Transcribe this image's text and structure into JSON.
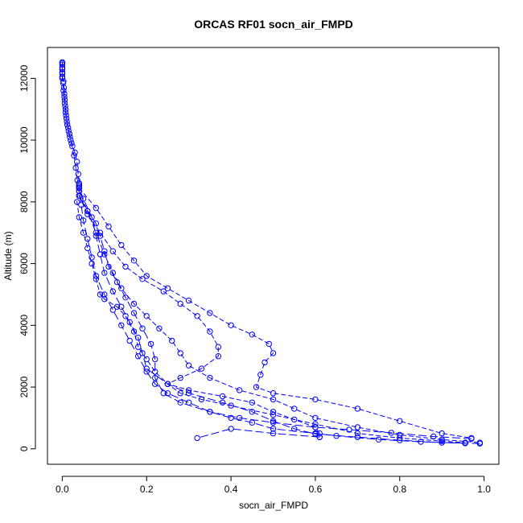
{
  "chart_data": {
    "type": "scatter",
    "title": "ORCAS RF01 socn_air_FMPD",
    "xlabel": "socn_air_FMPD",
    "ylabel": "Altitude (m)",
    "xlim": [
      -0.035,
      1.035
    ],
    "ylim": [
      -500,
      13000
    ],
    "xticks": [
      {
        "value": 0.0,
        "label": "0.0"
      },
      {
        "value": 0.2,
        "label": "0.2"
      },
      {
        "value": 0.4,
        "label": "0.4"
      },
      {
        "value": 0.6,
        "label": "0.6"
      },
      {
        "value": 0.8,
        "label": "0.8"
      },
      {
        "value": 1.0,
        "label": "1.0"
      }
    ],
    "yticks": [
      {
        "value": 0,
        "label": "0"
      },
      {
        "value": 2000,
        "label": "2000"
      },
      {
        "value": 4000,
        "label": "4000"
      },
      {
        "value": 6000,
        "label": "6000"
      },
      {
        "value": 8000,
        "label": "8000"
      },
      {
        "value": 10000,
        "label": "10000"
      },
      {
        "value": 12000,
        "label": "12000"
      }
    ],
    "color": "#0000ff",
    "marker": "open-circle",
    "series": [
      {
        "points": [
          [
            0.0,
            12500
          ],
          [
            0.0,
            12350
          ],
          [
            0.0,
            12200
          ],
          [
            0.0,
            12050
          ],
          [
            0.003,
            11900
          ],
          [
            0.004,
            11700
          ],
          [
            0.005,
            11500
          ],
          [
            0.006,
            11300
          ],
          [
            0.007,
            11100
          ],
          [
            0.008,
            10900
          ],
          [
            0.01,
            10700
          ],
          [
            0.012,
            10500
          ],
          [
            0.015,
            10300
          ],
          [
            0.018,
            10100
          ],
          [
            0.022,
            9900
          ],
          [
            0.028,
            9500
          ],
          [
            0.032,
            9100
          ],
          [
            0.036,
            8700
          ],
          [
            0.04,
            8550
          ],
          [
            0.04,
            8500
          ]
        ]
      },
      {
        "points": [
          [
            0.04,
            8500
          ],
          [
            0.035,
            8000
          ],
          [
            0.04,
            7500
          ],
          [
            0.05,
            7000
          ],
          [
            0.06,
            6500
          ],
          [
            0.07,
            6000
          ],
          [
            0.08,
            5500
          ],
          [
            0.09,
            5000
          ],
          [
            0.1,
            4850
          ],
          [
            0.13,
            4600
          ],
          [
            0.15,
            4300
          ],
          [
            0.17,
            3800
          ],
          [
            0.18,
            3300
          ],
          [
            0.2,
            2900
          ],
          [
            0.22,
            2500
          ],
          [
            0.25,
            2100
          ],
          [
            0.28,
            1800
          ],
          [
            0.33,
            1600
          ],
          [
            0.4,
            1400
          ],
          [
            0.5,
            1100
          ],
          [
            0.6,
            800
          ],
          [
            0.7,
            500
          ],
          [
            0.8,
            350
          ],
          [
            0.9,
            250
          ],
          [
            0.955,
            200
          ]
        ]
      },
      {
        "points": [
          [
            0.955,
            180
          ],
          [
            0.85,
            230
          ],
          [
            0.75,
            300
          ],
          [
            0.65,
            420
          ],
          [
            0.6,
            500
          ],
          [
            0.5,
            650
          ],
          [
            0.45,
            850
          ],
          [
            0.4,
            1000
          ],
          [
            0.35,
            1200
          ],
          [
            0.3,
            1500
          ],
          [
            0.25,
            1800
          ],
          [
            0.22,
            2100
          ],
          [
            0.2,
            2500
          ],
          [
            0.18,
            3000
          ],
          [
            0.16,
            3500
          ],
          [
            0.14,
            4000
          ],
          [
            0.12,
            4500
          ],
          [
            0.1,
            5000
          ],
          [
            0.08,
            5600
          ],
          [
            0.07,
            6200
          ],
          [
            0.06,
            6800
          ],
          [
            0.05,
            7400
          ],
          [
            0.045,
            7900
          ],
          [
            0.04,
            8350
          ]
        ]
      },
      {
        "points": [
          [
            0.04,
            8350
          ],
          [
            0.06,
            7700
          ],
          [
            0.08,
            7000
          ],
          [
            0.1,
            6300
          ],
          [
            0.12,
            5700
          ],
          [
            0.14,
            5200
          ],
          [
            0.17,
            4700
          ],
          [
            0.2,
            4300
          ],
          [
            0.23,
            3900
          ],
          [
            0.26,
            3500
          ],
          [
            0.28,
            3100
          ],
          [
            0.3,
            2700
          ],
          [
            0.35,
            2300
          ],
          [
            0.42,
            1900
          ],
          [
            0.5,
            1600
          ],
          [
            0.55,
            1300
          ],
          [
            0.6,
            1000
          ],
          [
            0.7,
            700
          ],
          [
            0.8,
            450
          ],
          [
            0.9,
            300
          ],
          [
            0.99,
            200
          ]
        ]
      },
      {
        "points": [
          [
            0.99,
            170
          ],
          [
            0.9,
            200
          ],
          [
            0.8,
            280
          ],
          [
            0.7,
            380
          ],
          [
            0.6,
            480
          ],
          [
            0.55,
            650
          ],
          [
            0.5,
            900
          ],
          [
            0.45,
            1200
          ],
          [
            0.38,
            1500
          ],
          [
            0.3,
            1800
          ],
          [
            0.25,
            2100
          ],
          [
            0.2,
            2600
          ],
          [
            0.19,
            3100
          ],
          [
            0.18,
            3600
          ],
          [
            0.16,
            4100
          ],
          [
            0.14,
            4600
          ],
          [
            0.12,
            5100
          ],
          [
            0.1,
            5700
          ],
          [
            0.09,
            6300
          ],
          [
            0.08,
            6900
          ],
          [
            0.07,
            7500
          ],
          [
            0.05,
            8100
          ],
          [
            0.04,
            8450
          ]
        ]
      },
      {
        "points": [
          [
            0.04,
            8450
          ],
          [
            0.08,
            7800
          ],
          [
            0.11,
            7200
          ],
          [
            0.14,
            6600
          ],
          [
            0.17,
            6100
          ],
          [
            0.2,
            5600
          ],
          [
            0.25,
            5200
          ],
          [
            0.3,
            4800
          ],
          [
            0.35,
            4400
          ],
          [
            0.4,
            4000
          ],
          [
            0.45,
            3700
          ],
          [
            0.49,
            3400
          ],
          [
            0.5,
            3100
          ],
          [
            0.48,
            2800
          ],
          [
            0.47,
            2400
          ],
          [
            0.46,
            2000
          ],
          [
            0.5,
            1800
          ],
          [
            0.6,
            1600
          ],
          [
            0.7,
            1300
          ],
          [
            0.8,
            900
          ],
          [
            0.9,
            500
          ],
          [
            0.97,
            350
          ]
        ]
      },
      {
        "points": [
          [
            0.97,
            330
          ],
          [
            0.88,
            400
          ],
          [
            0.78,
            520
          ],
          [
            0.68,
            620
          ],
          [
            0.6,
            700
          ],
          [
            0.5,
            850
          ],
          [
            0.42,
            1000
          ],
          [
            0.35,
            1200
          ],
          [
            0.28,
            1500
          ],
          [
            0.24,
            1800
          ],
          [
            0.22,
            2300
          ],
          [
            0.22,
            2900
          ],
          [
            0.21,
            3400
          ],
          [
            0.19,
            3900
          ],
          [
            0.17,
            4400
          ],
          [
            0.15,
            4900
          ],
          [
            0.13,
            5400
          ],
          [
            0.11,
            5900
          ],
          [
            0.1,
            6400
          ],
          [
            0.09,
            6900
          ],
          [
            0.08,
            7300
          ],
          [
            0.06,
            7700
          ],
          [
            0.04,
            8200
          ]
        ]
      },
      {
        "points": [
          [
            0.04,
            8200
          ],
          [
            0.06,
            7600
          ],
          [
            0.09,
            7000
          ],
          [
            0.12,
            6400
          ],
          [
            0.15,
            5900
          ],
          [
            0.19,
            5500
          ],
          [
            0.24,
            5100
          ],
          [
            0.28,
            4700
          ],
          [
            0.32,
            4300
          ],
          [
            0.35,
            3800
          ],
          [
            0.37,
            3300
          ],
          [
            0.37,
            3000
          ],
          [
            0.33,
            2600
          ],
          [
            0.28,
            2300
          ],
          [
            0.25,
            2100
          ],
          [
            0.3,
            1900
          ],
          [
            0.38,
            1700
          ],
          [
            0.45,
            1500
          ],
          [
            0.5,
            1200
          ],
          [
            0.55,
            950
          ],
          [
            0.6,
            700
          ],
          [
            0.61,
            500
          ],
          [
            0.61,
            380
          ]
        ]
      },
      {
        "points": [
          [
            0.61,
            380
          ],
          [
            0.5,
            500
          ],
          [
            0.4,
            650
          ],
          [
            0.32,
            350
          ]
        ]
      },
      {
        "points": [
          [
            0.0,
            12520
          ],
          [
            0.0,
            12450
          ],
          [
            0.0,
            12300
          ],
          [
            0.0,
            12150
          ],
          [
            0.0,
            12000
          ],
          [
            0.002,
            11850
          ],
          [
            0.003,
            11600
          ],
          [
            0.005,
            11400
          ],
          [
            0.006,
            11200
          ],
          [
            0.008,
            11000
          ],
          [
            0.009,
            10800
          ],
          [
            0.011,
            10600
          ],
          [
            0.014,
            10400
          ],
          [
            0.017,
            10200
          ],
          [
            0.02,
            10000
          ],
          [
            0.024,
            9800
          ],
          [
            0.03,
            9600
          ],
          [
            0.035,
            9300
          ],
          [
            0.038,
            8900
          ],
          [
            0.04,
            8600
          ]
        ]
      }
    ]
  }
}
